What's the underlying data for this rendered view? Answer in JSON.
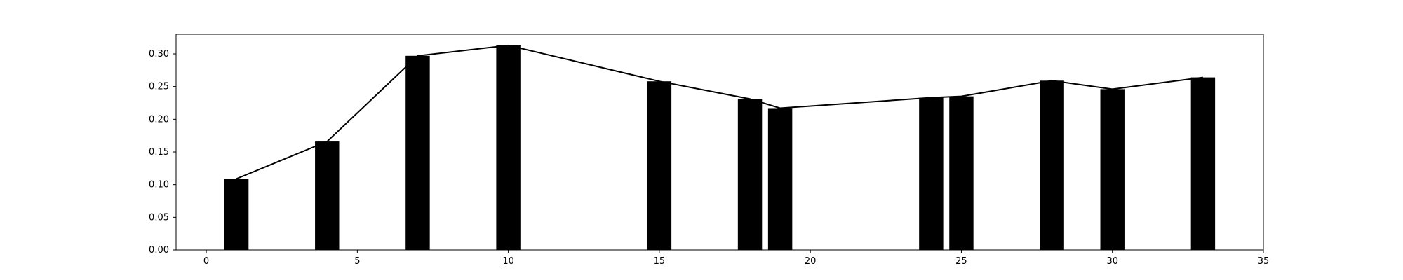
{
  "chart_data": {
    "type": "bar",
    "title": "",
    "xlabel": "",
    "ylabel": "",
    "xlim": [
      -1,
      35
    ],
    "ylim": [
      0,
      0.33
    ],
    "grid": false,
    "bar_width": 0.8,
    "bar_color": "#000000",
    "line_color": "#000000",
    "x": [
      1,
      4,
      7,
      10,
      15,
      18,
      19,
      24,
      25,
      28,
      30,
      33
    ],
    "values": [
      0.109,
      0.166,
      0.297,
      0.313,
      0.258,
      0.231,
      0.217,
      0.233,
      0.235,
      0.259,
      0.246,
      0.264
    ],
    "x_ticks": [
      0,
      5,
      10,
      15,
      20,
      25,
      30,
      35
    ],
    "x_tick_labels": [
      "0",
      "5",
      "10",
      "15",
      "20",
      "25",
      "30",
      "35"
    ],
    "y_ticks": [
      0,
      0.05,
      0.1,
      0.15,
      0.2,
      0.25,
      0.3
    ],
    "y_tick_labels": [
      "0.00",
      "0.05",
      "0.10",
      "0.15",
      "0.20",
      "0.25",
      "0.30"
    ]
  }
}
